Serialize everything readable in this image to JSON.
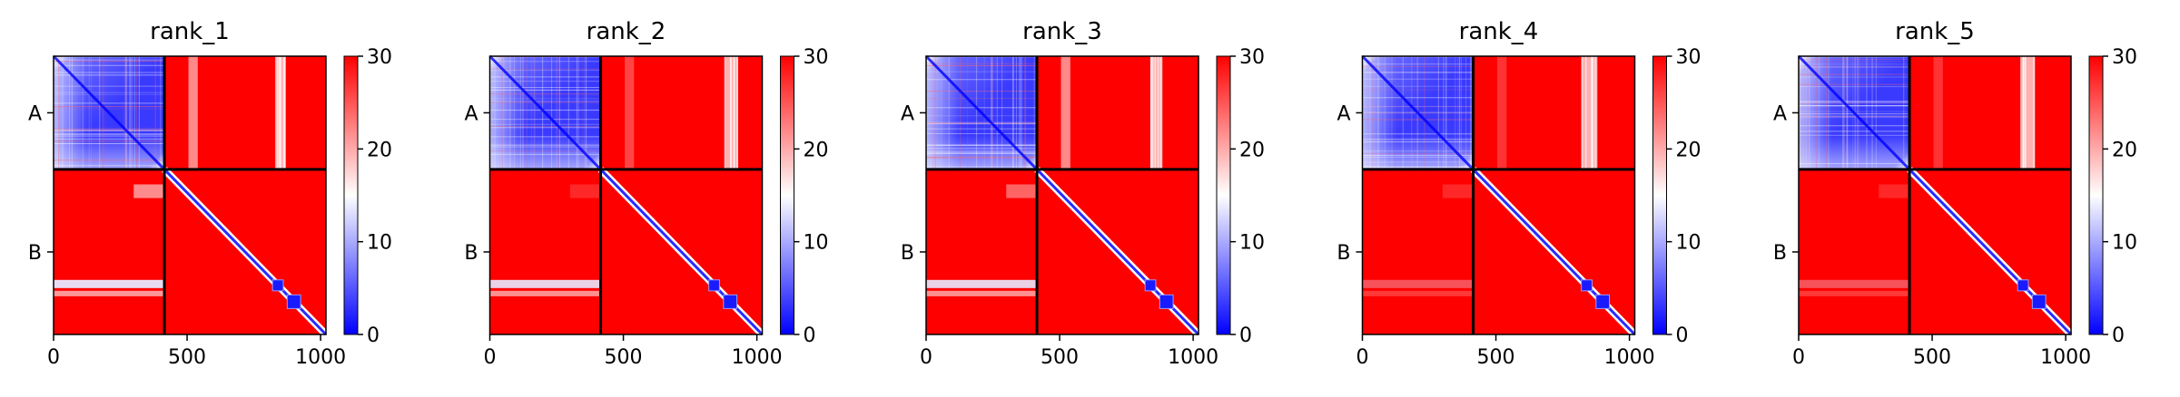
{
  "chart_data": {
    "type": "heatmap",
    "colormap": {
      "name": "bwr",
      "low_color": "#0000ff",
      "mid_color": "#ffffff",
      "high_color": "#ff0000"
    },
    "clim": [
      0,
      30
    ],
    "colorbar_ticks": [
      "0",
      "10",
      "20",
      "30"
    ],
    "x_ticks": [
      "0",
      "500",
      "1000"
    ],
    "xlim": [
      0,
      1020
    ],
    "ylim": [
      0,
      1020
    ],
    "chain_boundary": 415,
    "chain_labels": [
      "A",
      "B"
    ],
    "blocks": [
      {
        "name": "A-A",
        "pattern": "low values in intra-chain block A, increasing toward edges",
        "approx_value_range": [
          0,
          12
        ]
      },
      {
        "name": "A-B",
        "pattern": "mostly saturated high",
        "approx_value_range": [
          20,
          30
        ]
      },
      {
        "name": "B-A",
        "pattern": "mostly saturated high with lighter bands",
        "approx_value_range": [
          15,
          30
        ]
      },
      {
        "name": "B-B",
        "pattern": "low diagonal band with two low-value square domains near residues 830-900",
        "approx_value_range": [
          0,
          30
        ]
      }
    ],
    "panels": [
      {
        "title": "rank_1"
      },
      {
        "title": "rank_2"
      },
      {
        "title": "rank_3"
      },
      {
        "title": "rank_4"
      },
      {
        "title": "rank_5"
      }
    ]
  }
}
